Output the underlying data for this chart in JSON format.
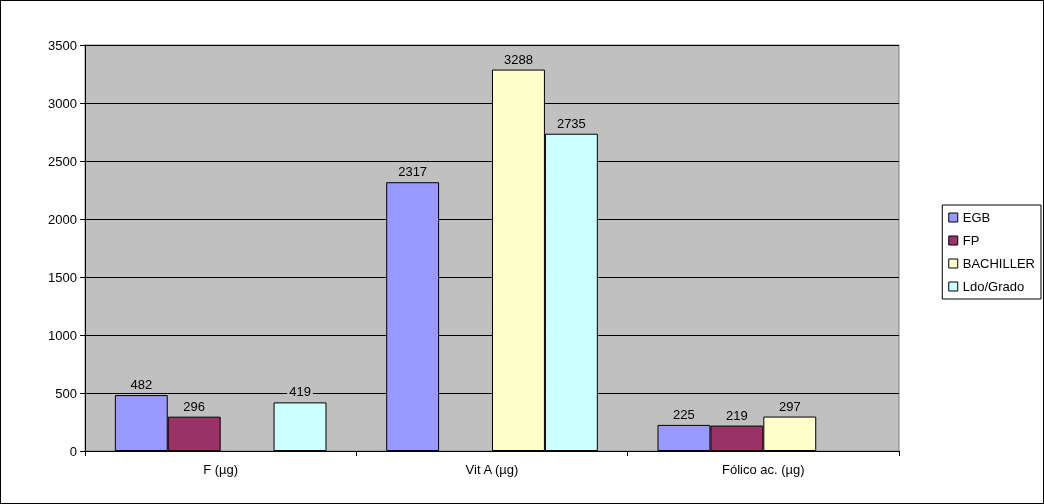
{
  "chart_data": {
    "type": "bar",
    "categories": [
      "F (µg)",
      "Vit A (µg)",
      "Fólico ac. (µg)"
    ],
    "series": [
      {
        "name": "EGB",
        "color": "#9999ff",
        "values": [
          482,
          2317,
          225
        ]
      },
      {
        "name": "FP",
        "color": "#993366",
        "values": [
          296,
          null,
          219
        ]
      },
      {
        "name": "BACHILLER",
        "color": "#ffffcc",
        "values": [
          null,
          3288,
          297
        ]
      },
      {
        "name": "Ldo/Grado",
        "color": "#ccffff",
        "values": [
          419,
          2735,
          null
        ]
      }
    ],
    "ylim": [
      0,
      3500
    ],
    "yticks": [
      0,
      500,
      1000,
      1500,
      2000,
      2500,
      3000,
      3500
    ],
    "grid": "y",
    "legend": "right",
    "data_labels": true
  }
}
